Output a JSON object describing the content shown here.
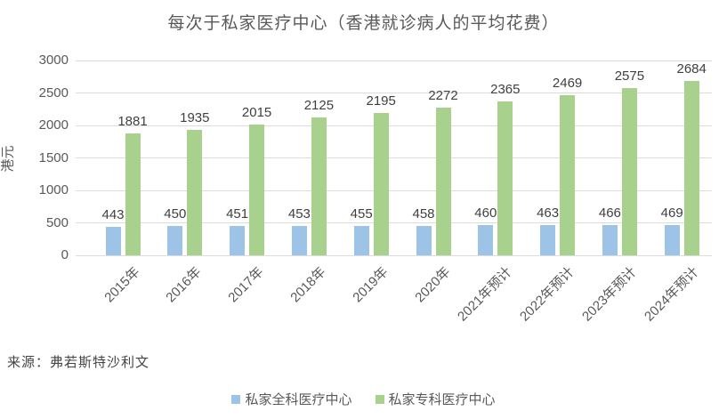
{
  "title": "每次于私家医疗中心（香港就诊病人的平均花费）",
  "source": "来源：弗若斯特沙利文",
  "colors": {
    "series_general": "#9DC3E6",
    "series_specialist": "#A9D18E",
    "title_text": "#595959",
    "axis_text": "#595959",
    "value_label_text": "#404040",
    "gridline": "#DCDCDC"
  },
  "chart_data": {
    "type": "bar",
    "title": "每次于私家医疗中心（香港就诊病人的平均花费）",
    "xlabel": "",
    "ylabel": "港元",
    "ylim": [
      0,
      3000
    ],
    "yticks": [
      0,
      500,
      1000,
      1500,
      2000,
      2500,
      3000
    ],
    "grid": true,
    "legend_position": "bottom",
    "categories": [
      "2015年",
      "2016年",
      "2017年",
      "2018年",
      "2019年",
      "2020年",
      "2021年预计",
      "2022年预计",
      "2023年预计",
      "2024年预计"
    ],
    "series": [
      {
        "name": "私家全科医疗中心",
        "color": "#9DC3E6",
        "values": [
          443,
          450,
          451,
          453,
          455,
          458,
          460,
          463,
          466,
          469
        ]
      },
      {
        "name": "私家专科医疗中心",
        "color": "#A9D18E",
        "values": [
          1881,
          1935,
          2015,
          2125,
          2195,
          2272,
          2365,
          2469,
          2575,
          2684
        ]
      }
    ]
  }
}
